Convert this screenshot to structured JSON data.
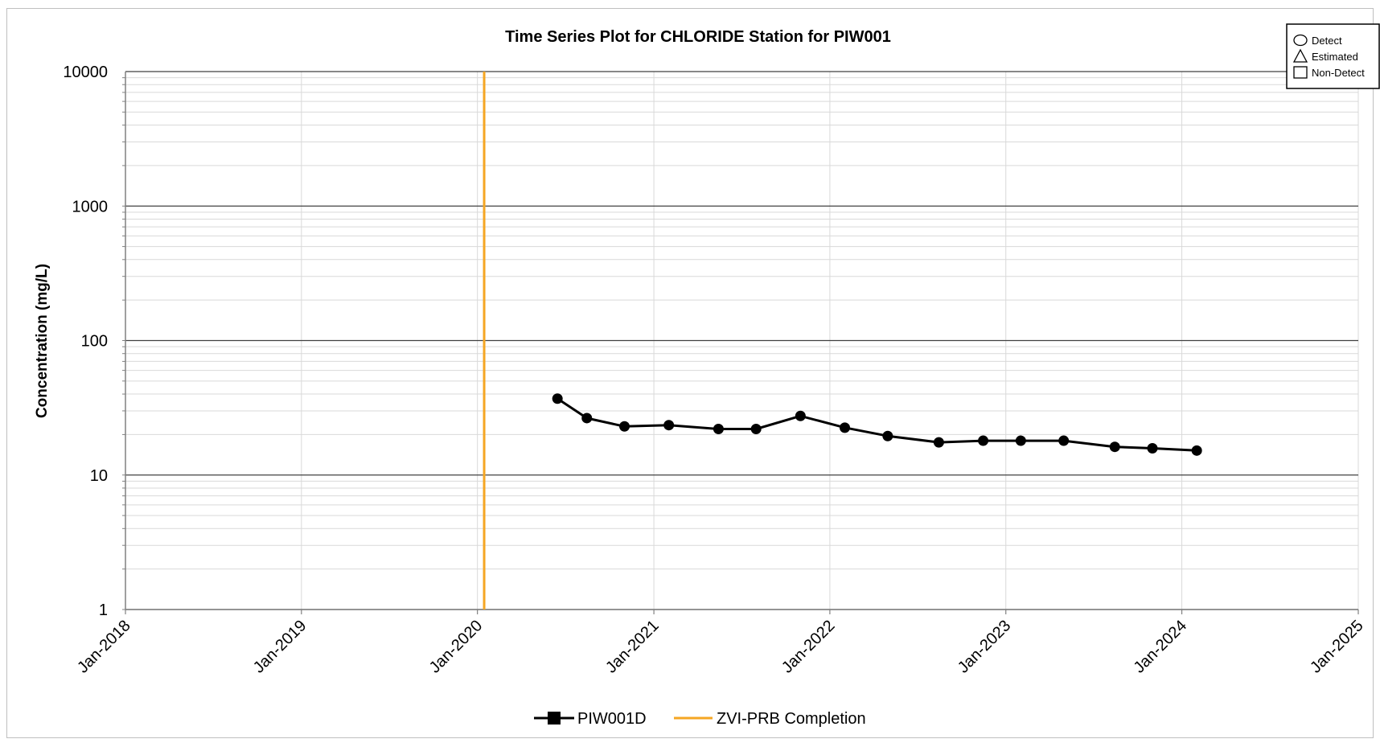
{
  "chart_data": {
    "type": "line",
    "title": "Time Series Plot for CHLORIDE Station for PIW001",
    "xlabel": "",
    "ylabel": "Concentration (mg/L)",
    "yscale": "log",
    "ylim": [
      1,
      10000
    ],
    "y_ticks": [
      1,
      10,
      100,
      1000,
      10000
    ],
    "y_tick_labels": [
      "1",
      "10",
      "100",
      "1000",
      "10000"
    ],
    "xlim": [
      "2018-01-01",
      "2025-01-01"
    ],
    "x_ticks": [
      "2018-01-01",
      "2019-01-01",
      "2020-01-01",
      "2021-01-01",
      "2022-01-01",
      "2023-01-01",
      "2024-01-01",
      "2025-01-01"
    ],
    "x_tick_labels": [
      "Jan-2018",
      "Jan-2019",
      "Jan-2020",
      "Jan-2021",
      "Jan-2022",
      "Jan-2023",
      "Jan-2024",
      "Jan-2025"
    ],
    "grid": true,
    "series": [
      {
        "name": "PIW001D",
        "color": "#000000",
        "marker": "circle",
        "x": [
          "2020-06-15",
          "2020-08-15",
          "2020-11-01",
          "2021-02-01",
          "2021-05-15",
          "2021-08-01",
          "2021-11-01",
          "2022-02-01",
          "2022-05-01",
          "2022-08-15",
          "2022-11-15",
          "2023-02-01",
          "2023-05-01",
          "2023-08-15",
          "2023-11-01",
          "2024-02-01"
        ],
        "y": [
          37,
          26.5,
          23,
          23.5,
          22,
          22,
          27.5,
          22.5,
          19.5,
          17.5,
          18,
          18,
          18,
          16.2,
          15.8,
          15.2
        ]
      }
    ],
    "reference_lines": [
      {
        "name": "ZVI-PRB Completion",
        "x": "2020-01-15",
        "color": "#F5A623"
      }
    ],
    "legend": {
      "position": "bottom",
      "items": [
        {
          "label": "PIW001D",
          "color": "#000000",
          "marker": "square"
        },
        {
          "label": "ZVI-PRB Completion",
          "color": "#F5A623",
          "marker": "none"
        }
      ]
    },
    "symbol_legend": {
      "position": "top-right",
      "items": [
        {
          "shape": "circle",
          "label": "Detect"
        },
        {
          "shape": "triangle",
          "label": "Estimated"
        },
        {
          "shape": "square",
          "label": "Non-Detect"
        }
      ]
    }
  }
}
